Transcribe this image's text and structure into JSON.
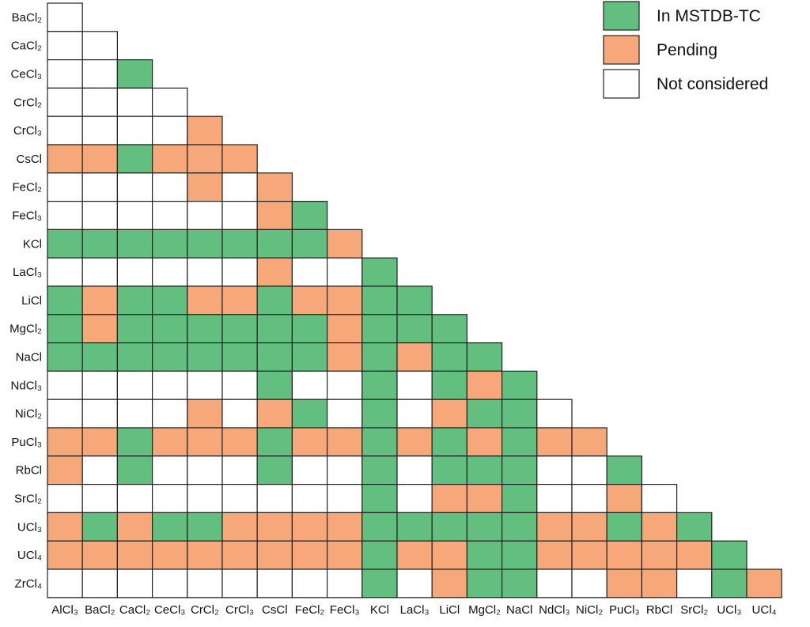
{
  "chart_data": {
    "type": "heatmap",
    "title": "",
    "legend": {
      "placement": "top-right",
      "entries": [
        {
          "code": 2,
          "label": "In MSTDB-TC",
          "color": "#62bf7f"
        },
        {
          "code": 1,
          "label": "Pending",
          "color": "#f7a87a"
        },
        {
          "code": 0,
          "label": "Not considered",
          "color": "#ffffff"
        }
      ]
    },
    "columns": [
      "AlCl₃",
      "BaCl₂",
      "CaCl₂",
      "CeCl₃",
      "CrCl₂",
      "CrCl₃",
      "CsCl",
      "FeCl₂",
      "FeCl₃",
      "KCl",
      "LaCl₃",
      "LiCl",
      "MgCl₂",
      "NaCl",
      "NdCl₃",
      "NiCl₂",
      "PuCl₃",
      "RbCl",
      "SrCl₂",
      "UCl₃",
      "UCl₄"
    ],
    "rows": [
      "BaCl₂",
      "CaCl₂",
      "CeCl₃",
      "CrCl₂",
      "CrCl₃",
      "CsCl",
      "FeCl₂",
      "FeCl₃",
      "KCl",
      "LaCl₃",
      "LiCl",
      "MgCl₂",
      "NaCl",
      "NdCl₃",
      "NiCl₂",
      "PuCl₃",
      "RbCl",
      "SrCl₂",
      "UCl₃",
      "UCl₄",
      "ZrCl₄"
    ],
    "values": [
      [
        0
      ],
      [
        0,
        0
      ],
      [
        0,
        0,
        2
      ],
      [
        0,
        0,
        0,
        0
      ],
      [
        0,
        0,
        0,
        0,
        1
      ],
      [
        1,
        1,
        2,
        1,
        1,
        1
      ],
      [
        0,
        0,
        0,
        0,
        1,
        0,
        1
      ],
      [
        0,
        0,
        0,
        0,
        0,
        0,
        1,
        2
      ],
      [
        2,
        2,
        2,
        2,
        2,
        2,
        2,
        2,
        1
      ],
      [
        0,
        0,
        0,
        0,
        0,
        0,
        1,
        0,
        0,
        2
      ],
      [
        2,
        1,
        2,
        2,
        1,
        1,
        2,
        1,
        1,
        2,
        2
      ],
      [
        2,
        1,
        2,
        2,
        2,
        2,
        2,
        2,
        1,
        2,
        2,
        2
      ],
      [
        2,
        2,
        2,
        2,
        2,
        2,
        2,
        2,
        1,
        2,
        1,
        2,
        2
      ],
      [
        0,
        0,
        0,
        0,
        0,
        0,
        2,
        0,
        0,
        2,
        0,
        2,
        1,
        2
      ],
      [
        0,
        0,
        0,
        0,
        1,
        0,
        1,
        2,
        0,
        2,
        0,
        1,
        2,
        2,
        0
      ],
      [
        1,
        1,
        2,
        1,
        1,
        1,
        2,
        1,
        1,
        2,
        1,
        2,
        1,
        2,
        1,
        1
      ],
      [
        1,
        0,
        2,
        0,
        0,
        0,
        2,
        0,
        0,
        2,
        0,
        2,
        2,
        2,
        0,
        0,
        2
      ],
      [
        0,
        0,
        0,
        0,
        0,
        0,
        0,
        0,
        0,
        2,
        0,
        1,
        1,
        2,
        0,
        0,
        1,
        0
      ],
      [
        1,
        2,
        1,
        2,
        2,
        1,
        1,
        1,
        1,
        2,
        2,
        2,
        2,
        2,
        1,
        1,
        2,
        1,
        2
      ],
      [
        1,
        1,
        1,
        1,
        1,
        1,
        1,
        1,
        1,
        2,
        1,
        1,
        2,
        2,
        1,
        1,
        1,
        1,
        1,
        2
      ],
      [
        0,
        0,
        0,
        0,
        0,
        0,
        0,
        0,
        0,
        2,
        0,
        1,
        2,
        2,
        0,
        0,
        1,
        1,
        0,
        2,
        1
      ]
    ]
  }
}
